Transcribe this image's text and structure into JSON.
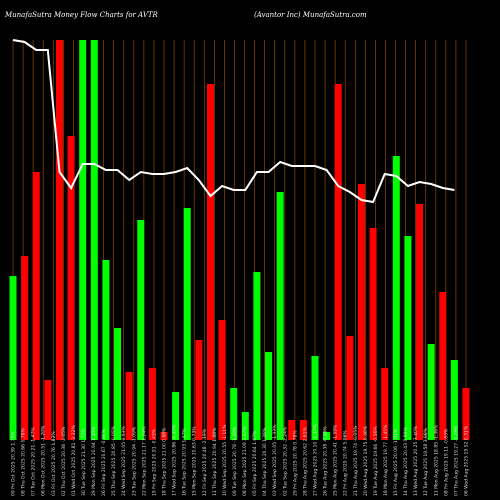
{
  "header": {
    "title_left": "MunafaSutra Money Flow  Charts for AVTR",
    "title_right": "(Avantor Inc) MunafaSutra.com"
  },
  "colors": {
    "background": "#000000",
    "up": "#00ff00",
    "down": "#ff0000",
    "grid": "#ff8c00",
    "line": "#ffffff"
  },
  "chart_data": {
    "type": "bar",
    "title": "MunafaSutra Money Flow  Charts for AVTR",
    "subtitle": "(Avantor Inc) MunafaSutra.com",
    "ylim": [
      0,
      100
    ],
    "categories": [
      "09 Fri Oct 2025 20.39 1.75%",
      "08 Thu Oct 2025 20.66 0.78%",
      "07 Tue Oct 2025 20.21 -1.47%",
      "06 Mon Oct 2025 20.51 -1.20%",
      "03 Fri Oct 2025 20.76 1.83%",
      "02 Thu Oct 2025 20.38 -2.05%",
      "01 Wed Oct 2025 20.81 -2.32%",
      "30 Tue Sep 2025 21.30 1.72%",
      "29 Mon Sep 2025 20.94 1.30%",
      "26 Fri Sep 2025 20.67 -0.86%",
      "25 Thu Sep 2025 20.85 -0.95%",
      "24 Wed Sep 2025 21.05 0.53%",
      "23 Tue Sep 2025 20.94 -1.09%",
      "22 Mon Sep 2025 21.17 1.24%",
      "19 Fri Sep 2025 20.91 -0.43%",
      "18 Thu Sep 2025 21.00 0.68%",
      "17 Wed Sep 2025 20.86 -0.35%",
      "16 Tue Sep 2025 20.93 1.47%",
      "15 Mon Sep 2025 20.63 0.73%",
      "12 Fri Sep 2025 20.48 -2.19%",
      "11 Thu Sep 2025 20.94 1.88%",
      "10 Wed Sep 2025 20.55 -1.11%",
      "09 Tue Sep 2025 20.78 -1.49%",
      "08 Mon Sep 2025 21.09 2.17%",
      "05 Fri Sep 2025 20.64 1.67%",
      "04 Thu Sep 2025 20.30 1.26%",
      "03 Wed Sep 2025 20.05 -1.33%",
      "02 Tue Sep 2025 20.32 -2.24%",
      "29 Fri Aug 2025 20.78 0.78%",
      "28 Thu Aug 2025 20.62 2.61%",
      "27 Wed Aug 2025 20.10 -1.37%",
      "26 Tue Aug 2025 20.38 -0.16%",
      "25 Mon Aug 2025 20.41 -1.59%",
      "22 Fri Aug 2025 20.74 5.06%",
      "21 Thu Aug 2025 19.74 -0.05%",
      "20 Wed Aug 2025 19.75 0.46%",
      "19 Tue Aug 2025 19.66 -0.56%",
      "18 Mon Aug 2025 19.77 -1.45%",
      "15 Fri Aug 2025 20.06 -1.81%",
      "14 Thu Aug 2025 20.43 0.89%",
      "13 Wed Aug 2025 20.25 3.40%",
      "12 Tue Aug 2025 19.58 3.88%",
      "11 Mon Aug 2025 18.85 -1.36%",
      "08 Fri Aug 2025 19.11 -0.83%",
      "07 Thu Aug 2025 19.27 -1.28%",
      "06 Wed Aug 2025 19.52 0.31%"
    ],
    "series": [
      {
        "values": [
          0,
          36,
          31,
          15,
          2,
          6,
          12,
          28,
          4,
          18,
          5,
          9,
          23,
          2,
          57,
          3,
          28,
          15,
          59,
          25,
          2,
          43,
          5,
          1,
          30,
          30,
          0,
          12,
          0,
          3,
          40,
          45,
          30,
          50,
          23,
          27,
          5,
          63,
          35,
          95,
          80,
          30,
          36,
          0,
          0,
          0
        ]
      },
      {
        "values": [
          13,
          0,
          0,
          0,
          0,
          0,
          0,
          0,
          0,
          0,
          0,
          0,
          0,
          0,
          0,
          0,
          0,
          0,
          0,
          0,
          0,
          0,
          0,
          0,
          0,
          0,
          0,
          0,
          0,
          0,
          0,
          0,
          0,
          0,
          0,
          0,
          0,
          0,
          0,
          0,
          0,
          0,
          0,
          0,
          0,
          0
        ]
      }
    ]
  }
}
